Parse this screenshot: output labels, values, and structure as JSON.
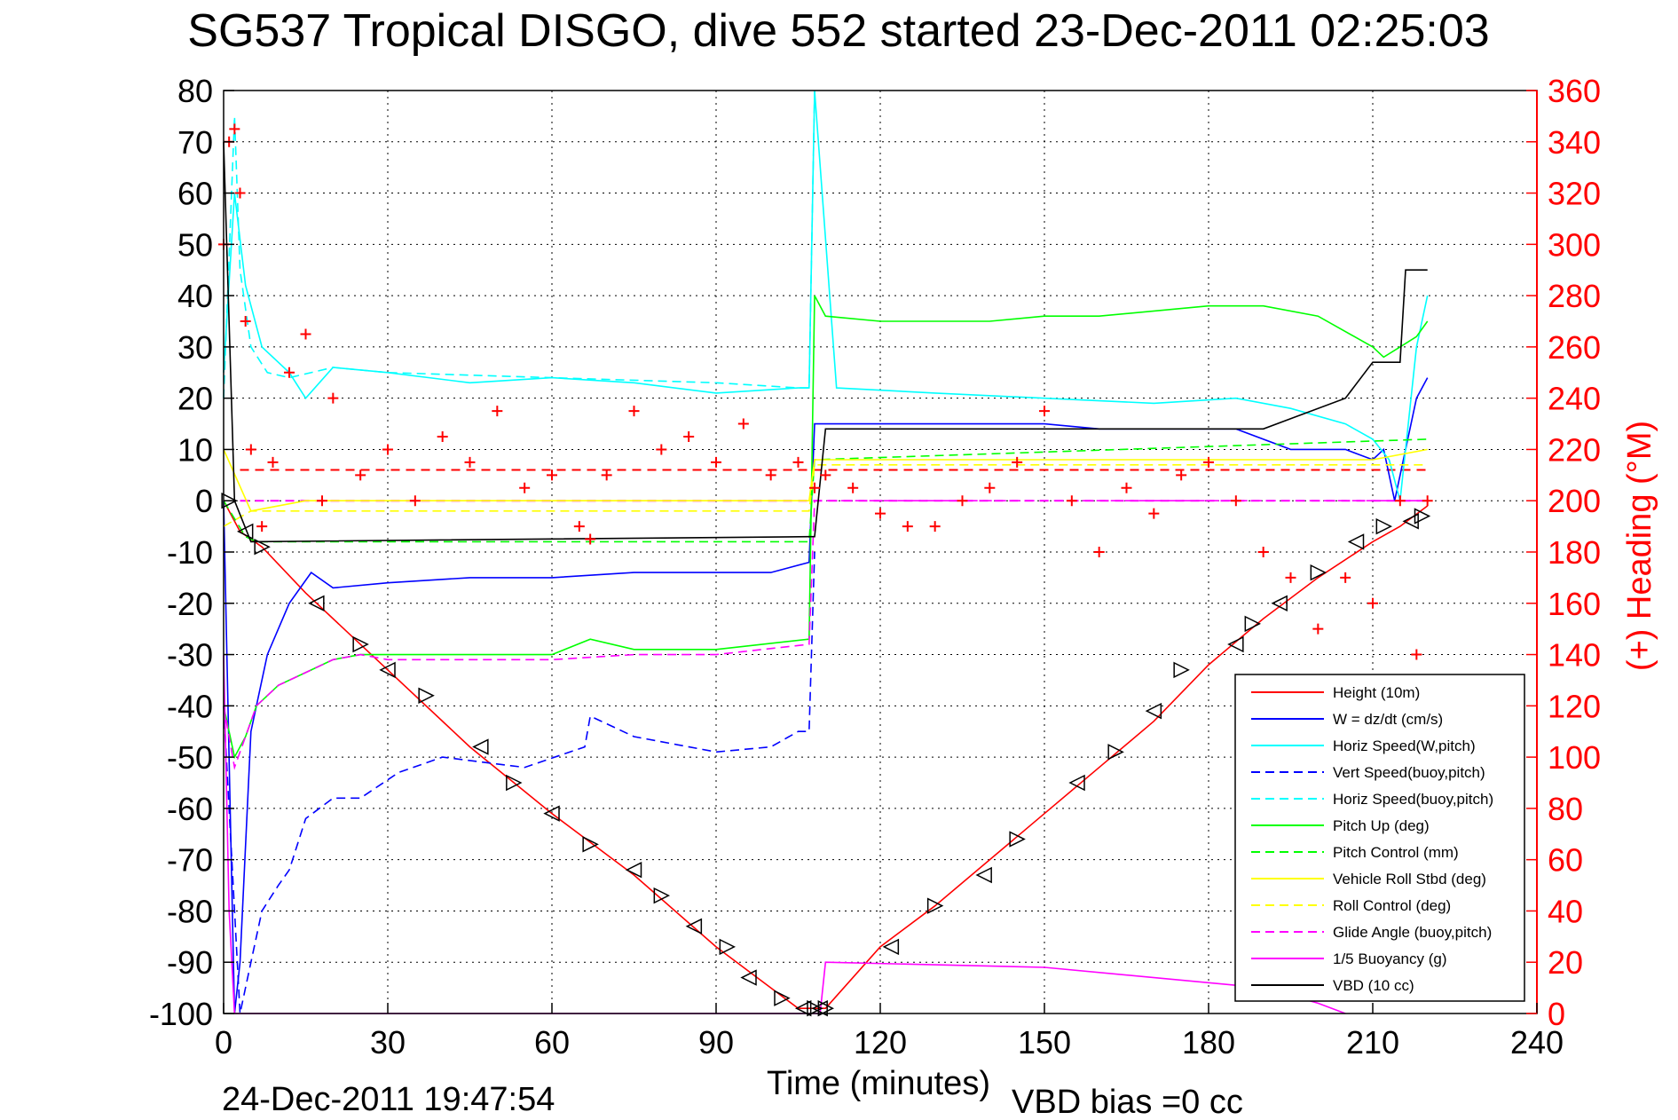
{
  "chart_data": {
    "type": "line",
    "title": "SG537 Tropical DISGO, dive 552 started 23-Dec-2011 02:25:03",
    "xlabel": "Time (minutes)",
    "ylabel_right": "(+) Heading (°M)",
    "footer_left": "24-Dec-2011 19:47:54",
    "footer_right": "VBD bias =0 cc",
    "xlim": [
      0,
      240
    ],
    "ylim": [
      -100,
      80
    ],
    "y2lim": [
      0,
      360
    ],
    "grid": true,
    "legend_position": "bottom-right",
    "x_ticks": [
      "0",
      "30",
      "60",
      "90",
      "120",
      "150",
      "180",
      "210",
      "240"
    ],
    "y_ticks": [
      "80",
      "70",
      "60",
      "50",
      "40",
      "30",
      "20",
      "10",
      "0",
      "-10",
      "-20",
      "-30",
      "-40",
      "-50",
      "-60",
      "-70",
      "-80",
      "-90",
      "-100"
    ],
    "y2_ticks": [
      "360",
      "340",
      "320",
      "300",
      "280",
      "260",
      "240",
      "220",
      "200",
      "180",
      "160",
      "140",
      "120",
      "100",
      "80",
      "60",
      "40",
      "20",
      "0"
    ],
    "colors": {
      "height": "#ff0000",
      "w": "#0000ff",
      "horiz_speed": "#00ffff",
      "pitch": "#00ff00",
      "roll": "#ffff00",
      "glide": "#ff00ff",
      "buoyancy": "#ff00ff",
      "vbd": "#000000",
      "heading": "#ff0000"
    },
    "series": [
      {
        "name": "Height (10m)",
        "style": "solid",
        "color": "#ff0000",
        "x": [
          0,
          3,
          7,
          15,
          30,
          45,
          60,
          75,
          90,
          100,
          105,
          110,
          120,
          130,
          150,
          160,
          170,
          180,
          190,
          200,
          210,
          215,
          220
        ],
        "y": [
          0,
          -6,
          -9,
          -18,
          -33,
          -48,
          -61,
          -73,
          -87,
          -95,
          -99,
          -99,
          -87,
          -79,
          -61,
          -52,
          -43,
          -32,
          -23,
          -15,
          -8,
          -5,
          -1
        ]
      },
      {
        "name": "W = dz/dt (cm/s)",
        "style": "solid",
        "color": "#0000ff",
        "x": [
          0,
          2,
          3,
          5,
          8,
          12,
          16,
          20,
          30,
          45,
          60,
          75,
          90,
          100,
          107,
          108,
          112,
          120,
          140,
          150,
          160,
          180,
          185,
          195,
          205,
          210,
          212,
          214,
          216,
          218,
          220
        ],
        "y": [
          0,
          -100,
          -90,
          -45,
          -30,
          -20,
          -14,
          -17,
          -16,
          -15,
          -15,
          -14,
          -14,
          -14,
          -12,
          15,
          15,
          15,
          15,
          15,
          14,
          14,
          14,
          10,
          10,
          8,
          10,
          0,
          10,
          20,
          24
        ]
      },
      {
        "name": "Horiz Speed(W,pitch)",
        "style": "solid",
        "color": "#00ffff",
        "x": [
          0,
          2,
          4,
          7,
          12,
          15,
          20,
          30,
          45,
          60,
          75,
          90,
          105,
          107,
          108,
          112,
          130,
          150,
          170,
          185,
          195,
          205,
          210,
          213,
          215,
          218,
          220
        ],
        "y": [
          25,
          60,
          42,
          30,
          25,
          20,
          26,
          25,
          23,
          24,
          23,
          21,
          22,
          22,
          80,
          22,
          21,
          20,
          19,
          20,
          18,
          15,
          12,
          8,
          0,
          30,
          40
        ]
      },
      {
        "name": "Vert Speed(buoy,pitch)",
        "style": "dashed",
        "color": "#0000ff",
        "x": [
          0,
          3,
          5,
          7,
          10,
          12,
          15,
          20,
          25,
          32,
          40,
          55,
          66,
          67,
          75,
          90,
          100,
          105,
          107,
          108
        ],
        "y": [
          -40,
          -100,
          -90,
          -80,
          -75,
          -72,
          -62,
          -58,
          -58,
          -53,
          -50,
          -52,
          -48,
          -42,
          -46,
          -49,
          -48,
          -45,
          -45,
          -10
        ]
      },
      {
        "name": "Horiz Speed(buoy,pitch)",
        "style": "dashed",
        "color": "#00ffff",
        "x": [
          0,
          2,
          3,
          5,
          8,
          12,
          20,
          30,
          60,
          90,
          105,
          107,
          108
        ],
        "y": [
          20,
          75,
          45,
          30,
          25,
          24,
          26,
          25,
          24,
          23,
          22,
          22,
          80
        ]
      },
      {
        "name": "Pitch Up (deg)",
        "style": "solid",
        "color": "#00ff00",
        "x": [
          0,
          2,
          4,
          6,
          10,
          16,
          20,
          25,
          30,
          45,
          60,
          67,
          75,
          90,
          107,
          108,
          110,
          120,
          140,
          150,
          160,
          180,
          190,
          200,
          210,
          212,
          215,
          218,
          220
        ],
        "y": [
          -40,
          -50,
          -46,
          -40,
          -36,
          -33,
          -31,
          -30,
          -30,
          -30,
          -30,
          -27,
          -29,
          -29,
          -27,
          40,
          36,
          35,
          35,
          36,
          36,
          38,
          38,
          36,
          30,
          28,
          30,
          32,
          35
        ]
      },
      {
        "name": "Pitch Control (mm)",
        "style": "dashed",
        "color": "#00ff00",
        "x": [
          0,
          4,
          6,
          107,
          108,
          220
        ],
        "y": [
          0,
          -7,
          -8,
          -8,
          8,
          12
        ]
      },
      {
        "name": "Vehicle Roll Stbd (deg)",
        "style": "solid",
        "color": "#ffff00",
        "x": [
          0,
          5,
          15,
          30,
          45,
          60,
          75,
          90,
          107,
          108,
          120,
          150,
          170,
          180,
          200,
          210,
          220
        ],
        "y": [
          10,
          -2,
          0,
          0,
          0,
          0,
          0,
          0,
          0,
          8,
          8,
          8,
          8,
          8,
          8,
          8,
          10
        ]
      },
      {
        "name": "Roll Control (deg)",
        "style": "dashed",
        "color": "#ffff00",
        "x": [
          0,
          5,
          107,
          108,
          220
        ],
        "y": [
          -5,
          -2,
          -2,
          7,
          7
        ]
      },
      {
        "name": "Glide Angle (buoy,pitch)",
        "style": "dashed",
        "color": "#ff00ff",
        "x": [
          0,
          2,
          4,
          6,
          10,
          16,
          20,
          25,
          30,
          45,
          60,
          75,
          90,
          107,
          108,
          110,
          220
        ],
        "y": [
          -40,
          -52,
          -46,
          -40,
          -36,
          -33,
          -31,
          -30,
          -31,
          -31,
          -31,
          -30,
          -30,
          -28,
          0,
          0,
          0
        ]
      },
      {
        "name": "1/5 Buoyancy (g)",
        "style": "solid",
        "color": "#ff00ff",
        "x": [
          0,
          1,
          2,
          3,
          108,
          109,
          110,
          150,
          190,
          200,
          205
        ],
        "y": [
          -30,
          -80,
          -100,
          -100,
          -100,
          -100,
          -90,
          -91,
          -95,
          -98,
          -100
        ]
      },
      {
        "name": "VBD (10 cc)",
        "style": "solid",
        "color": "#000000",
        "x": [
          0,
          2,
          5,
          107,
          108,
          110,
          150,
          190,
          195,
          205,
          210,
          215,
          216,
          220
        ],
        "y": [
          70,
          0,
          -8,
          -7,
          -7,
          14,
          14,
          14,
          16,
          20,
          27,
          27,
          45,
          45
        ]
      }
    ],
    "heading_series": {
      "name": "(+) Heading (°M)",
      "marker": "+",
      "color": "#ff0000",
      "axis": "right",
      "x": [
        0,
        1,
        2,
        3,
        4,
        5,
        7,
        9,
        12,
        15,
        18,
        20,
        25,
        30,
        35,
        40,
        45,
        50,
        55,
        60,
        65,
        67,
        70,
        75,
        80,
        85,
        90,
        95,
        100,
        105,
        108,
        110,
        115,
        120,
        125,
        130,
        135,
        140,
        145,
        150,
        155,
        160,
        165,
        170,
        175,
        180,
        185,
        190,
        195,
        200,
        205,
        210,
        215,
        218,
        220
      ],
      "y": [
        300,
        340,
        345,
        320,
        270,
        220,
        190,
        215,
        250,
        265,
        200,
        240,
        210,
        220,
        200,
        225,
        215,
        235,
        205,
        210,
        190,
        185,
        210,
        235,
        220,
        225,
        215,
        230,
        210,
        215,
        205,
        210,
        205,
        195,
        190,
        190,
        200,
        205,
        215,
        235,
        200,
        180,
        205,
        195,
        210,
        215,
        200,
        180,
        170,
        150,
        170,
        160,
        200,
        140,
        200
      ]
    },
    "reference_lines": [
      {
        "name": "heading-target-line",
        "axis": "right",
        "value": 212,
        "color": "#ff0000",
        "style": "dashed"
      },
      {
        "name": "zero-line",
        "axis": "right",
        "value": 200,
        "color": "#ff00ff",
        "style": "dashed"
      }
    ],
    "markers": {
      "name": "Height triangles",
      "symbol": "triangle",
      "color": "#000000",
      "x": [
        1,
        4,
        7,
        17,
        25,
        30,
        37,
        47,
        53,
        60,
        67,
        75,
        80,
        86,
        92,
        96,
        102,
        106,
        108,
        109,
        110,
        122,
        130,
        139,
        145,
        156,
        163,
        170,
        175,
        185,
        188,
        193,
        200,
        207,
        212,
        217,
        219
      ],
      "y": [
        0,
        -6,
        -9,
        -20,
        -28,
        -33,
        -38,
        -48,
        -55,
        -61,
        -67,
        -72,
        -77,
        -83,
        -87,
        -93,
        -97,
        -99,
        -99,
        -99,
        -99,
        -87,
        -79,
        -73,
        -66,
        -55,
        -49,
        -41,
        -33,
        -28,
        -24,
        -20,
        -14,
        -8,
        -5,
        -4,
        -3
      ]
    },
    "legend": [
      "Height (10m)",
      "W = dz/dt (cm/s)",
      "Horiz Speed(W,pitch)",
      "Vert Speed(buoy,pitch)",
      "Horiz Speed(buoy,pitch)",
      "Pitch Up (deg)",
      "Pitch Control (mm)",
      "Vehicle Roll Stbd (deg)",
      "Roll Control (deg)",
      "Glide Angle (buoy,pitch)",
      "1/5 Buoyancy (g)",
      "VBD (10 cc)"
    ]
  }
}
